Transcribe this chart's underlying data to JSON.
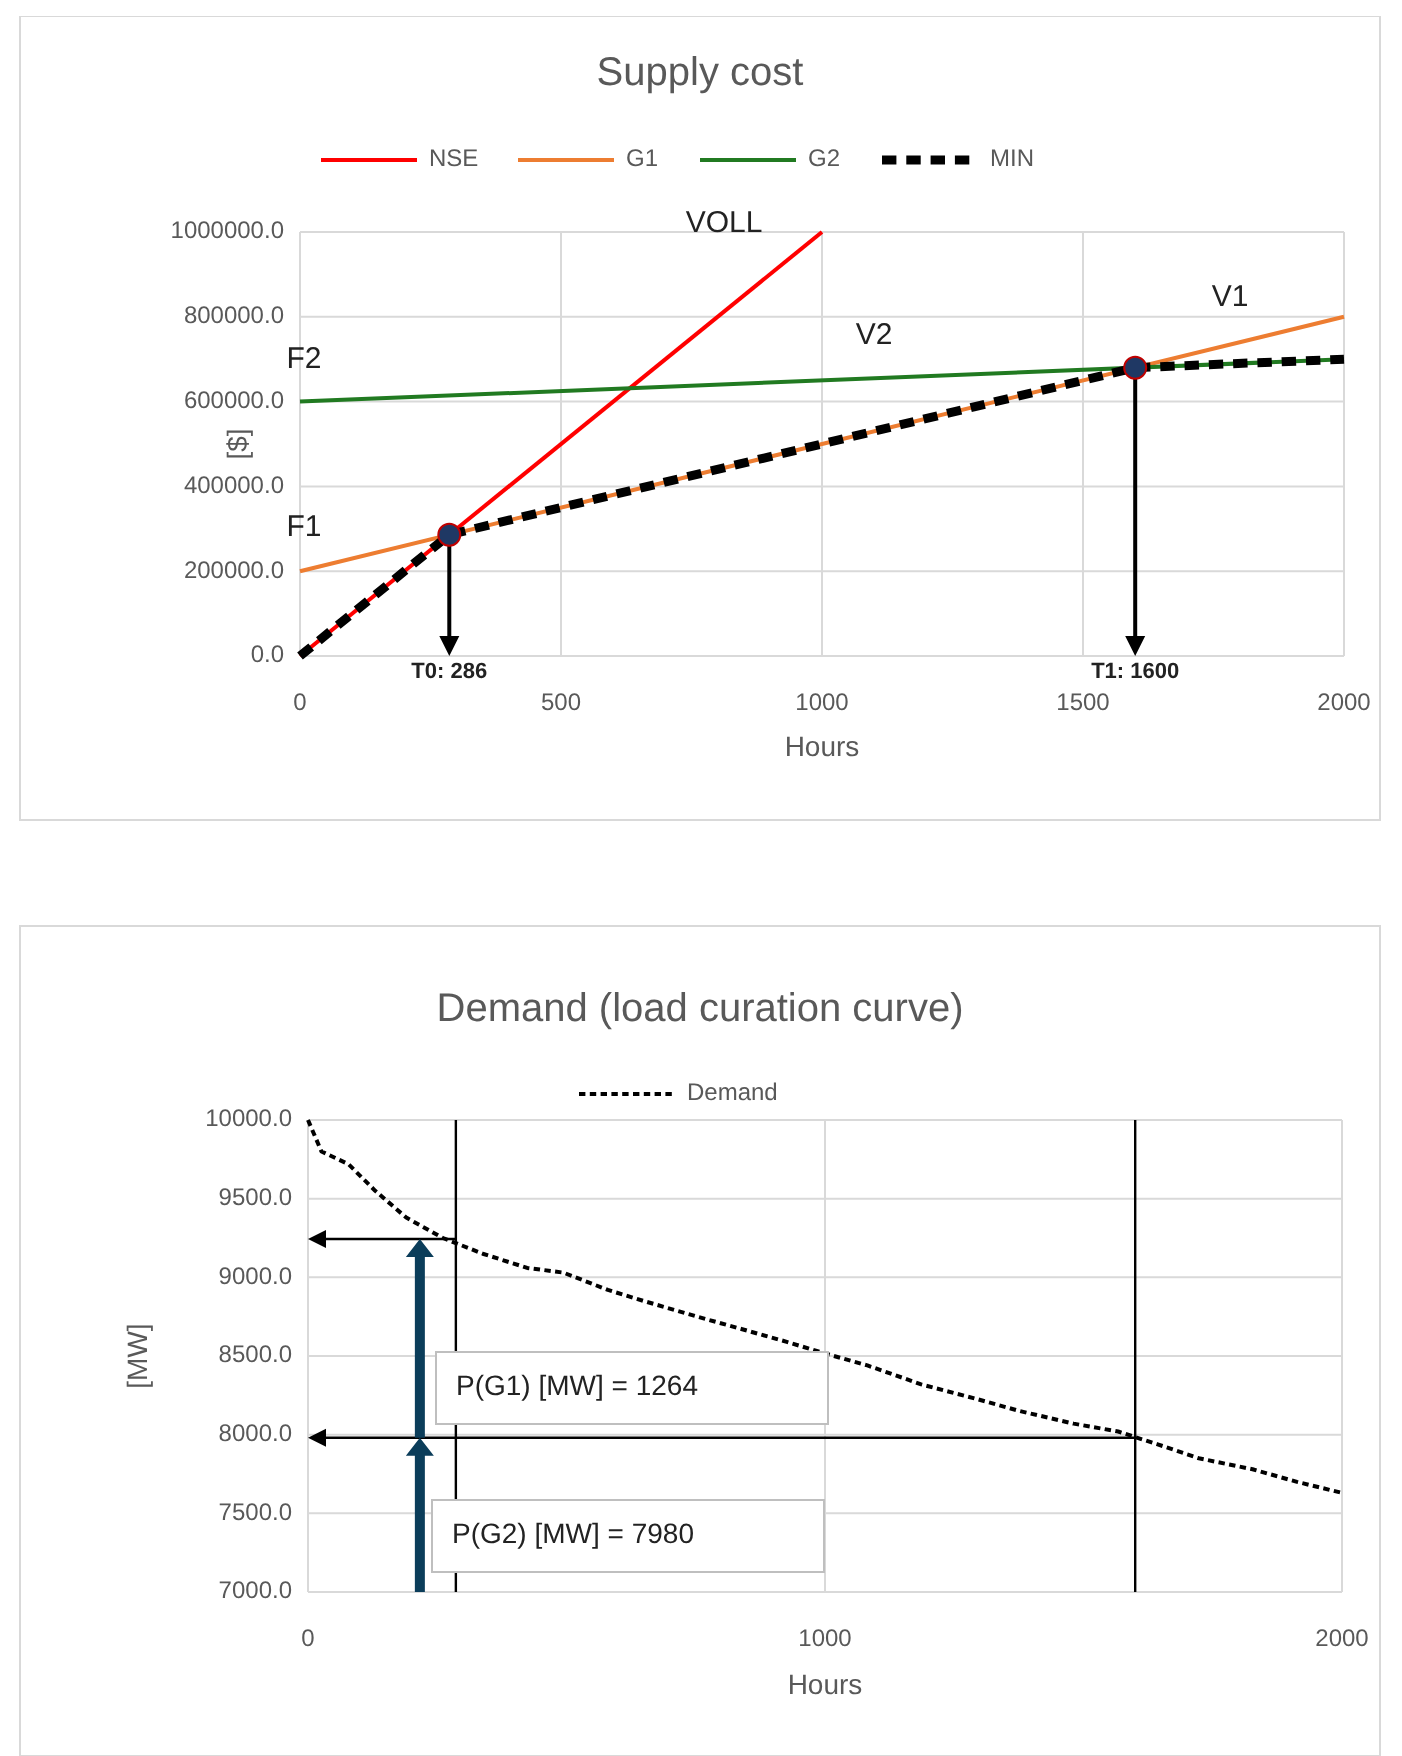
{
  "chart_data": [
    {
      "type": "line",
      "title": "Supply cost",
      "xlabel": "Hours",
      "ylabel": "[$]",
      "xlim": [
        0,
        2000
      ],
      "ylim": [
        0,
        1000000
      ],
      "xticks": [
        0,
        500,
        1000,
        1500,
        2000
      ],
      "yticks": [
        {
          "value": 0,
          "label": "0.0"
        },
        {
          "value": 200000,
          "label": "200000.0"
        },
        {
          "value": 400000,
          "label": "400000.0"
        },
        {
          "value": 600000,
          "label": "600000.0"
        },
        {
          "value": 800000,
          "label": "800000.0"
        },
        {
          "value": 1000000,
          "label": "1000000.0"
        }
      ],
      "grid": true,
      "legend": "top",
      "series": [
        {
          "name": "NSE",
          "color": "#ff0000",
          "x": [
            0,
            1000
          ],
          "values": [
            0,
            1000000
          ],
          "line_style": "solid"
        },
        {
          "name": "G1",
          "color": "#ed7d31",
          "x": [
            0,
            2000
          ],
          "values": [
            200000,
            800000
          ],
          "line_style": "solid"
        },
        {
          "name": "G2",
          "color": "#217a21",
          "x": [
            0,
            2000
          ],
          "values": [
            600000,
            700000
          ],
          "line_style": "solid"
        },
        {
          "name": "MIN",
          "color": "#000000",
          "x": [
            0,
            286,
            1600,
            2000
          ],
          "values": [
            0,
            286000,
            680000,
            700000
          ],
          "line_style": "dashed"
        },
        {
          "type": "scatter",
          "color": "#1f3864",
          "x": [
            286,
            1600
          ],
          "values": [
            286000,
            680000
          ],
          "marker": "circle"
        }
      ],
      "ref_lines": [
        {
          "axis": "x",
          "value": 286,
          "label": "T0: 286"
        },
        {
          "axis": "x",
          "value": 1600,
          "label": "T1: 1600"
        }
      ],
      "annotations": [
        "VOLL",
        "F2",
        "F1",
        "V2",
        "V1"
      ]
    },
    {
      "type": "line",
      "title": "Demand (load curation curve)",
      "xlabel": "Hours",
      "ylabel": "[MW]",
      "xlim": [
        0,
        2000
      ],
      "ylim": [
        7000,
        10000
      ],
      "xticks": [
        0,
        1000,
        2000
      ],
      "yticks": [
        {
          "value": 7000,
          "label": "7000.0"
        },
        {
          "value": 7500,
          "label": "7500.0"
        },
        {
          "value": 8000,
          "label": "8000.0"
        },
        {
          "value": 8500,
          "label": "8500.0"
        },
        {
          "value": 9000,
          "label": "9000.0"
        },
        {
          "value": 9500,
          "label": "9500.0"
        },
        {
          "value": 10000,
          "label": "10000.0"
        }
      ],
      "grid": true,
      "legend": "top",
      "series": [
        {
          "name": "Demand",
          "color": "#000000",
          "line_style": "dashed",
          "x": [
            0,
            26,
            78,
            130,
            190,
            261,
            338,
            424,
            494,
            580,
            649,
            753,
            840,
            926,
            996,
            1082,
            1186,
            1290,
            1377,
            1481,
            1567,
            1642,
            1723,
            1827,
            1913,
            2000
          ],
          "values": [
            10000,
            9800,
            9720,
            9550,
            9380,
            9250,
            9150,
            9060,
            9030,
            8920,
            8850,
            8750,
            8670,
            8590,
            8520,
            8440,
            8320,
            8230,
            8150,
            8070,
            8020,
            7940,
            7850,
            7780,
            7700,
            7630
          ]
        }
      ],
      "ref_lines": [
        {
          "axis": "x",
          "value": 286
        },
        {
          "axis": "x",
          "value": 1600
        },
        {
          "axis": "y",
          "value": 9244
        },
        {
          "axis": "y",
          "value": 7980
        }
      ],
      "annotations": [
        "P(G1)  [MW] = 1264",
        "P(G2)  [MW] = 7980"
      ]
    }
  ]
}
